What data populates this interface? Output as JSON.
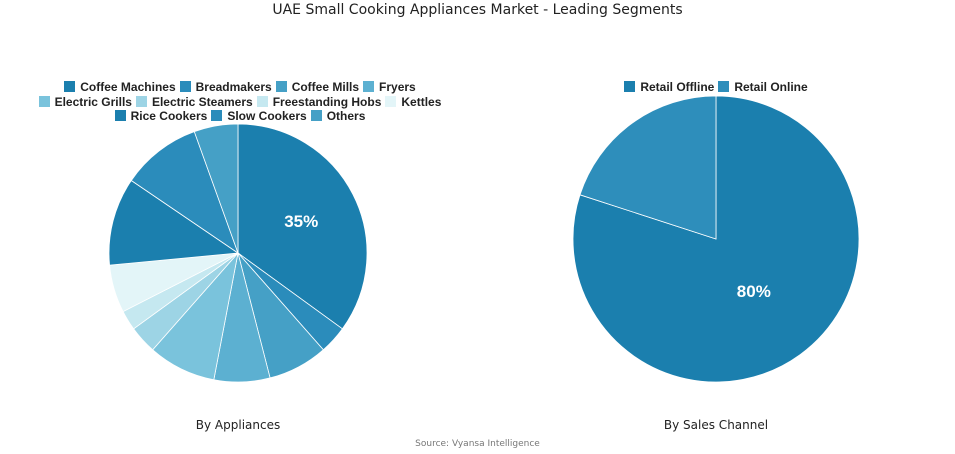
{
  "title": "UAE Small Cooking Appliances Market - Leading Segments",
  "source": "Source: Vyansa Intelligence",
  "chart_data": [
    {
      "type": "pie",
      "subtitle": "By Appliances",
      "categories": [
        "Coffee Machines",
        "Breadmakers",
        "Coffee Mills",
        "Fryers",
        "Electric Grills",
        "Electric Steamers",
        "Freestanding Hobs",
        "Kettles",
        "Rice Cookers",
        "Slow Cookers",
        "Others"
      ],
      "values": [
        35,
        3.5,
        7.5,
        7,
        8.5,
        3.5,
        2.5,
        6,
        11,
        10,
        5.5
      ],
      "colors": [
        "#1b7fae",
        "#2b8cbb",
        "#45a0c6",
        "#5cb0d1",
        "#7ac3dc",
        "#9dd4e5",
        "#c5e8f0",
        "#e3f5f8",
        "#1b7fae",
        "#2b8cbb",
        "#45a0c6"
      ],
      "data_labels": [
        "35%",
        "",
        "",
        "",
        "",
        "",
        "",
        "",
        "",
        "",
        ""
      ],
      "legend": "top"
    },
    {
      "type": "pie",
      "subtitle": "By Sales Channel",
      "categories": [
        "Retail Offline",
        "Retail Online"
      ],
      "values": [
        80,
        20
      ],
      "colors": [
        "#1b7fae",
        "#2e8ebb"
      ],
      "data_labels": [
        "80%",
        ""
      ],
      "legend": "top"
    }
  ]
}
